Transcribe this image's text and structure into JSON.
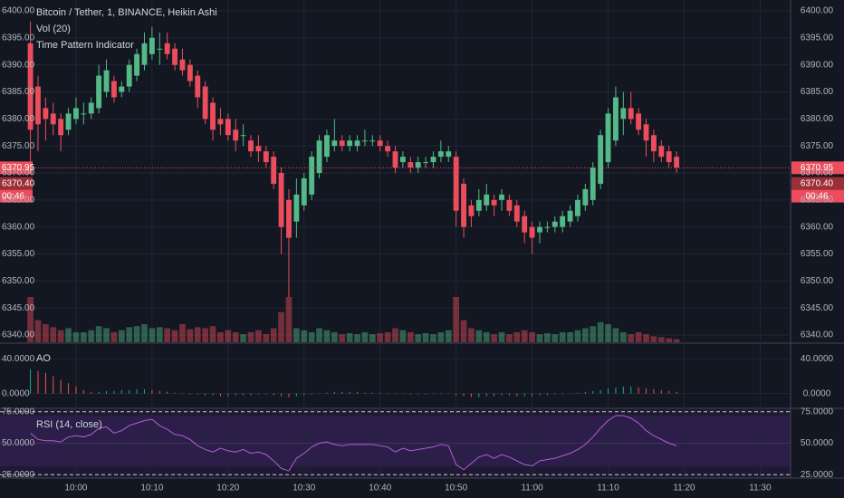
{
  "chart_data": {
    "type": "candlestick",
    "title": "Bitcoin / Tether, 1, BINANCE, Heikin Ashi",
    "indicator_labels": [
      "Vol (20)",
      "Time Pattern Indicator"
    ],
    "up_color": "#53b987",
    "down_color": "#eb4d5c",
    "xlim": [
      -4,
      100
    ],
    "xticks": [
      {
        "value": 6,
        "label": "10:00"
      },
      {
        "value": 16,
        "label": "10:10"
      },
      {
        "value": 26,
        "label": "10:20"
      },
      {
        "value": 36,
        "label": "10:30"
      },
      {
        "value": 46,
        "label": "10:40"
      },
      {
        "value": 56,
        "label": "10:50"
      },
      {
        "value": 66,
        "label": "11:00"
      },
      {
        "value": 76,
        "label": "11:10"
      },
      {
        "value": 86,
        "label": "11:20"
      },
      {
        "value": 96,
        "label": "11:30"
      }
    ],
    "ylim": [
      6340,
      6400
    ],
    "yticks": [
      {
        "value": 6340,
        "label": "6340.00"
      },
      {
        "value": 6345,
        "label": "6345.00"
      },
      {
        "value": 6350,
        "label": "6350.00"
      },
      {
        "value": 6355,
        "label": "6355.00"
      },
      {
        "value": 6360,
        "label": "6360.00"
      },
      {
        "value": 6365,
        "label": "6365.00"
      },
      {
        "value": 6370,
        "label": "6370.00"
      },
      {
        "value": 6375,
        "label": "6375.00"
      },
      {
        "value": 6380,
        "label": "6380.00"
      },
      {
        "value": 6385,
        "label": "6385.00"
      },
      {
        "value": 6390,
        "label": "6390.00"
      },
      {
        "value": 6395,
        "label": "6395.00"
      },
      {
        "value": 6400,
        "label": "6400.00"
      }
    ],
    "last_price": 6370.95,
    "prev_price": {
      "value": 6370.4,
      "label": "6370.40"
    },
    "countdown": "00:46",
    "candles": [
      [
        6394,
        6398,
        6372,
        6378
      ],
      [
        6386,
        6388,
        6374,
        6379
      ],
      [
        6382,
        6384,
        6376,
        6380
      ],
      [
        6381,
        6383,
        6377,
        6379
      ],
      [
        6380,
        6381,
        6374,
        6377
      ],
      [
        6378,
        6382,
        6377,
        6381
      ],
      [
        6380,
        6384,
        6379,
        6382
      ],
      [
        6381,
        6383,
        6379,
        6381
      ],
      [
        6381,
        6384,
        6380,
        6383
      ],
      [
        6382,
        6390,
        6381,
        6388
      ],
      [
        6385,
        6391,
        6384,
        6389
      ],
      [
        6387,
        6388,
        6383,
        6384
      ],
      [
        6385,
        6387,
        6384,
        6386
      ],
      [
        6386,
        6391,
        6385,
        6390
      ],
      [
        6388,
        6393,
        6387,
        6392
      ],
      [
        6390,
        6396,
        6389,
        6394
      ],
      [
        6392,
        6397,
        6391,
        6395
      ],
      [
        6393,
        6396,
        6390,
        6393
      ],
      [
        6394,
        6396,
        6391,
        6392
      ],
      [
        6393,
        6394,
        6389,
        6390
      ],
      [
        6391,
        6393,
        6388,
        6389
      ],
      [
        6390,
        6391,
        6386,
        6387
      ],
      [
        6388,
        6389,
        6382,
        6384
      ],
      [
        6386,
        6387,
        6379,
        6380
      ],
      [
        6383,
        6384,
        6376,
        6378
      ],
      [
        6380,
        6382,
        6377,
        6379
      ],
      [
        6380,
        6381,
        6376,
        6377
      ],
      [
        6378,
        6380,
        6374,
        6376
      ],
      [
        6377,
        6379,
        6375,
        6377
      ],
      [
        6376,
        6377,
        6373,
        6374
      ],
      [
        6375,
        6377,
        6372,
        6374
      ],
      [
        6374,
        6375,
        6371,
        6372
      ],
      [
        6373,
        6374,
        6367,
        6368
      ],
      [
        6370,
        6371,
        6355,
        6360
      ],
      [
        6365,
        6367,
        6347,
        6358
      ],
      [
        6361,
        6369,
        6358,
        6366
      ],
      [
        6364,
        6370,
        6363,
        6369
      ],
      [
        6366,
        6374,
        6365,
        6373
      ],
      [
        6370,
        6377,
        6369,
        6376
      ],
      [
        6373,
        6378,
        6372,
        6377
      ],
      [
        6375,
        6380,
        6374,
        6376
      ],
      [
        6376,
        6377,
        6374,
        6375
      ],
      [
        6375,
        6377,
        6374,
        6376
      ],
      [
        6375,
        6377,
        6374,
        6376
      ],
      [
        6376,
        6378,
        6375,
        6376
      ],
      [
        6376,
        6377,
        6375,
        6376
      ],
      [
        6376,
        6377,
        6374,
        6375
      ],
      [
        6375,
        6376,
        6373,
        6374
      ],
      [
        6374,
        6375,
        6370,
        6371
      ],
      [
        6372,
        6374,
        6371,
        6373
      ],
      [
        6372,
        6373,
        6370,
        6371
      ],
      [
        6371,
        6373,
        6370,
        6372
      ],
      [
        6372,
        6373,
        6371,
        6372
      ],
      [
        6372,
        6374,
        6371,
        6373
      ],
      [
        6373,
        6376,
        6372,
        6374
      ],
      [
        6373,
        6375,
        6372,
        6374
      ],
      [
        6373,
        6374,
        6360,
        6363
      ],
      [
        6368,
        6369,
        6358,
        6360
      ],
      [
        6364,
        6365,
        6360,
        6362
      ],
      [
        6363,
        6367,
        6362,
        6365
      ],
      [
        6364,
        6368,
        6363,
        6366
      ],
      [
        6365,
        6366,
        6362,
        6364
      ],
      [
        6365,
        6367,
        6363,
        6366
      ],
      [
        6365,
        6366,
        6362,
        6363
      ],
      [
        6364,
        6365,
        6360,
        6361
      ],
      [
        6362,
        6363,
        6357,
        6359
      ],
      [
        6360,
        6361,
        6355,
        6358
      ],
      [
        6359,
        6361,
        6357,
        6360
      ],
      [
        6360,
        6361,
        6359,
        6360
      ],
      [
        6360,
        6362,
        6359,
        6361
      ],
      [
        6360,
        6363,
        6359,
        6362
      ],
      [
        6361,
        6364,
        6360,
        6363
      ],
      [
        6362,
        6366,
        6361,
        6365
      ],
      [
        6364,
        6368,
        6363,
        6367
      ],
      [
        6365,
        6372,
        6364,
        6371
      ],
      [
        6368,
        6378,
        6367,
        6377
      ],
      [
        6372,
        6382,
        6371,
        6381
      ],
      [
        6376,
        6386,
        6375,
        6384
      ],
      [
        6380,
        6385,
        6377,
        6382
      ],
      [
        6382,
        6385,
        6379,
        6380
      ],
      [
        6381,
        6382,
        6377,
        6378
      ],
      [
        6379,
        6380,
        6373,
        6376
      ],
      [
        6377,
        6378,
        6372,
        6374
      ],
      [
        6375,
        6376,
        6372,
        6373
      ],
      [
        6374,
        6375,
        6371,
        6372
      ],
      [
        6373,
        6374,
        6370,
        6371
      ]
    ],
    "volume": [
      45,
      22,
      18,
      15,
      12,
      14,
      10,
      10,
      12,
      16,
      14,
      10,
      12,
      15,
      16,
      18,
      14,
      15,
      14,
      12,
      18,
      13,
      15,
      14,
      16,
      10,
      12,
      10,
      8,
      10,
      12,
      8,
      14,
      30,
      45,
      14,
      12,
      10,
      14,
      12,
      10,
      8,
      9,
      8,
      10,
      8,
      9,
      10,
      14,
      12,
      10,
      8,
      9,
      8,
      10,
      12,
      45,
      22,
      14,
      12,
      10,
      8,
      10,
      8,
      10,
      12,
      10,
      8,
      9,
      8,
      10,
      10,
      12,
      14,
      16,
      20,
      18,
      14,
      10,
      8,
      10,
      8,
      6,
      5,
      4,
      3
    ],
    "ao_label": "AO",
    "ao_ylim": [
      -16,
      57
    ],
    "ao_yticks": [
      {
        "value": 40,
        "label": "40.0000"
      },
      {
        "value": 0,
        "label": "0.0000"
      }
    ],
    "ao": [
      28,
      26,
      24,
      20,
      16,
      12,
      8,
      4,
      2,
      2,
      3,
      3,
      4,
      4,
      5,
      5,
      4,
      3,
      2,
      1,
      0,
      -1,
      -1,
      -2,
      -2,
      -3,
      -3,
      -2,
      -2,
      -2,
      -1,
      -1,
      -2,
      -3,
      -4,
      -3,
      -2,
      -1,
      0,
      1,
      2,
      2,
      2,
      2,
      1,
      1,
      1,
      0,
      0,
      0,
      -1,
      -1,
      -1,
      0,
      0,
      0,
      -2,
      -3,
      -4,
      -4,
      -3,
      -3,
      -2,
      -2,
      -3,
      -3,
      -3,
      -2,
      -2,
      -1,
      -1,
      0,
      1,
      2,
      3,
      4,
      6,
      7,
      8,
      8,
      7,
      6,
      5,
      4,
      3,
      2
    ],
    "rsi_label": "RSI (14, close)",
    "rsi_ylim": [
      23,
      77
    ],
    "rsi_yticks": [
      {
        "value": 75,
        "label": "75.0000"
      },
      {
        "value": 50,
        "label": "50.0000"
      },
      {
        "value": 25,
        "label": "25.0000"
      }
    ],
    "rsi": [
      58,
      53,
      52,
      52,
      51,
      55,
      56,
      55,
      57,
      62,
      63,
      58,
      60,
      64,
      66,
      68,
      69,
      64,
      61,
      57,
      56,
      53,
      48,
      45,
      43,
      46,
      44,
      43,
      45,
      42,
      43,
      41,
      36,
      30,
      28,
      38,
      42,
      47,
      50,
      51,
      49,
      48,
      49,
      49,
      49,
      49,
      48,
      47,
      43,
      46,
      44,
      45,
      46,
      47,
      49,
      48,
      33,
      29,
      34,
      39,
      41,
      38,
      41,
      39,
      36,
      33,
      32,
      36,
      37,
      38,
      40,
      42,
      45,
      49,
      55,
      62,
      68,
      72,
      72,
      70,
      66,
      60,
      56,
      53,
      50,
      48
    ]
  }
}
